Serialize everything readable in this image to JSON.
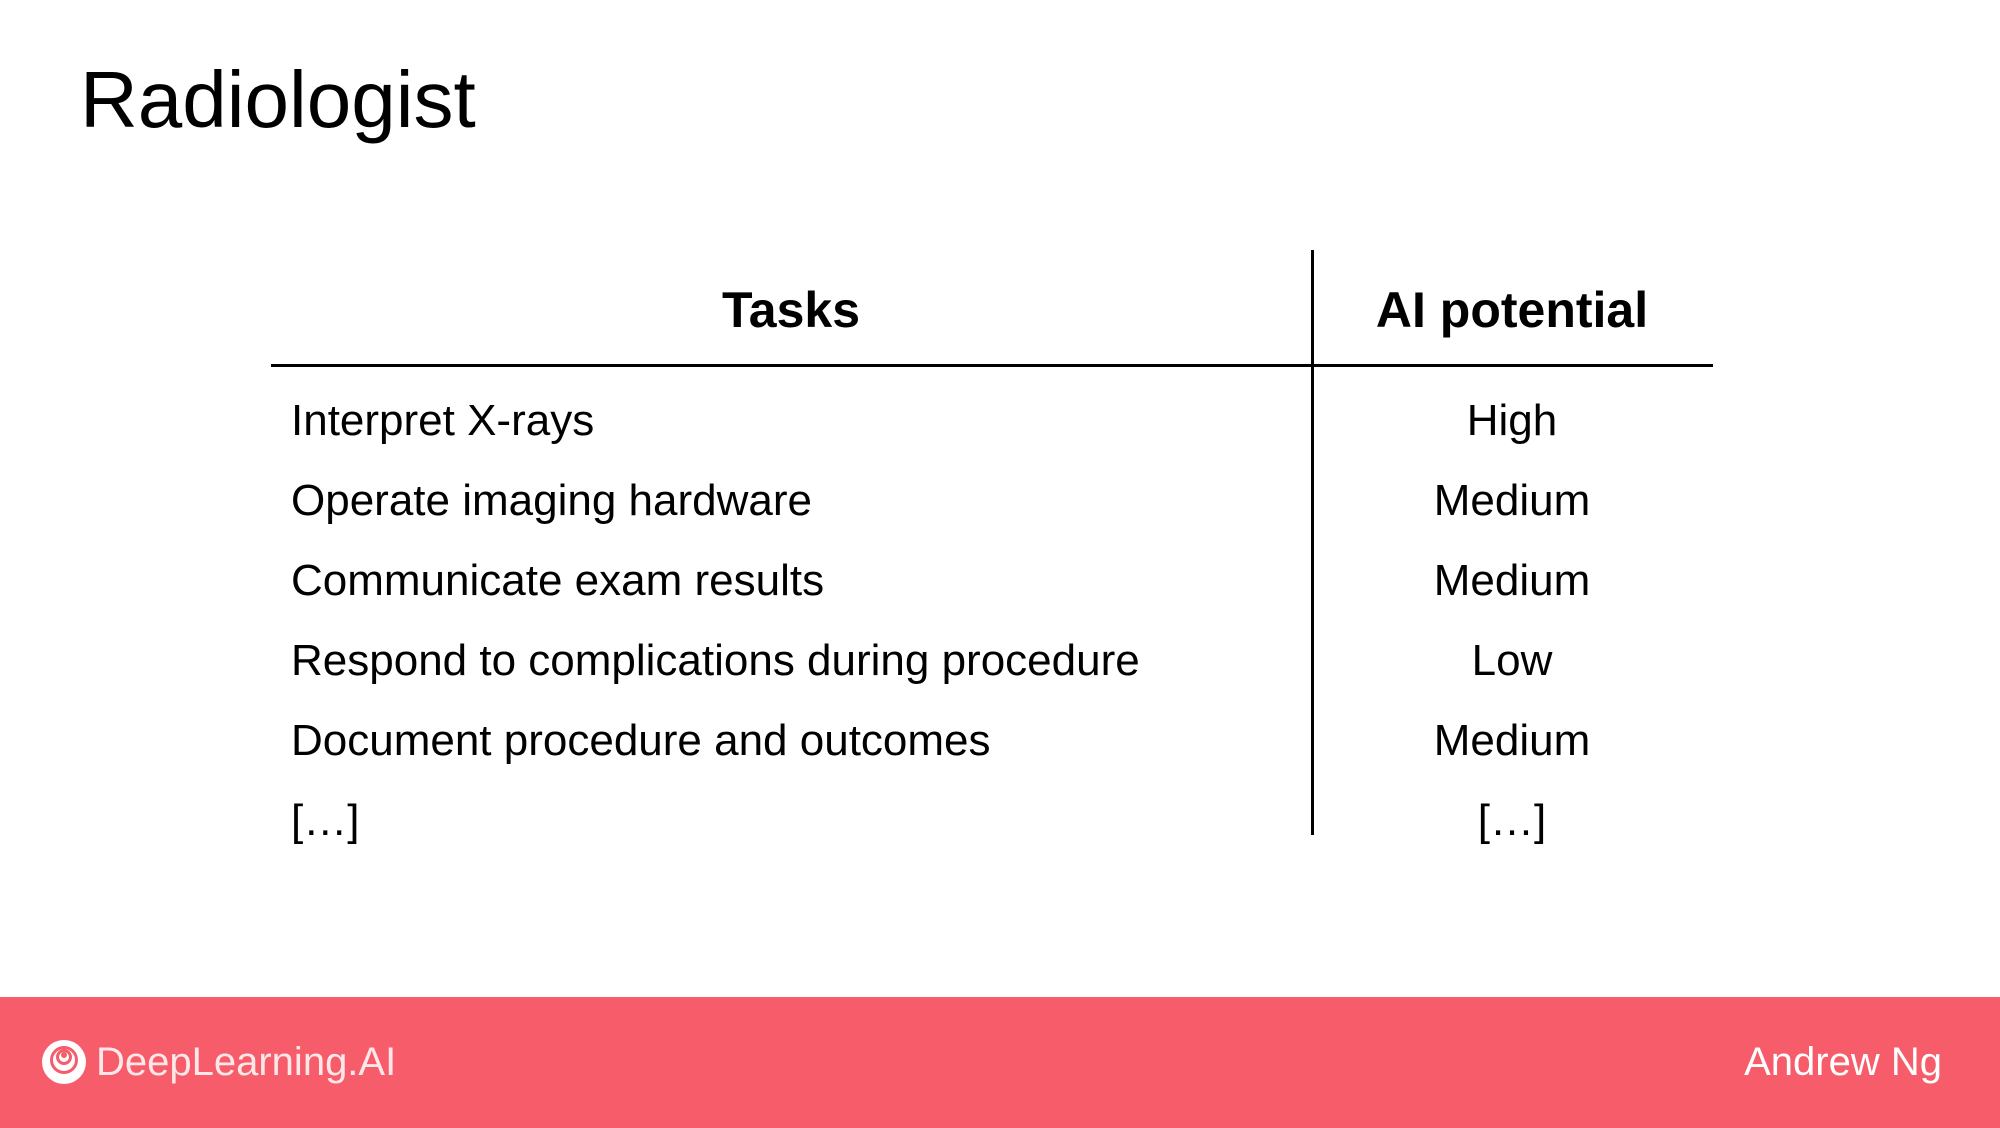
{
  "slide": {
    "title": "Radiologist"
  },
  "table": {
    "headers": {
      "tasks": "Tasks",
      "ai_potential": "AI potential"
    },
    "rows": [
      {
        "task": "Interpret X-rays",
        "potential": "High"
      },
      {
        "task": "Operate imaging hardware",
        "potential": "Medium"
      },
      {
        "task": "Communicate exam results",
        "potential": "Medium"
      },
      {
        "task": "Respond to complications during procedure",
        "potential": "Low"
      },
      {
        "task": "Document procedure and outcomes",
        "potential": "Medium"
      },
      {
        "task": "[…]",
        "potential": "[…]"
      }
    ]
  },
  "footer": {
    "logo_text": "DeepLearning.AI",
    "logo_icon": "deeplearning-ai-logo-icon",
    "author": "Andrew Ng",
    "background_color": "#f65c69"
  }
}
